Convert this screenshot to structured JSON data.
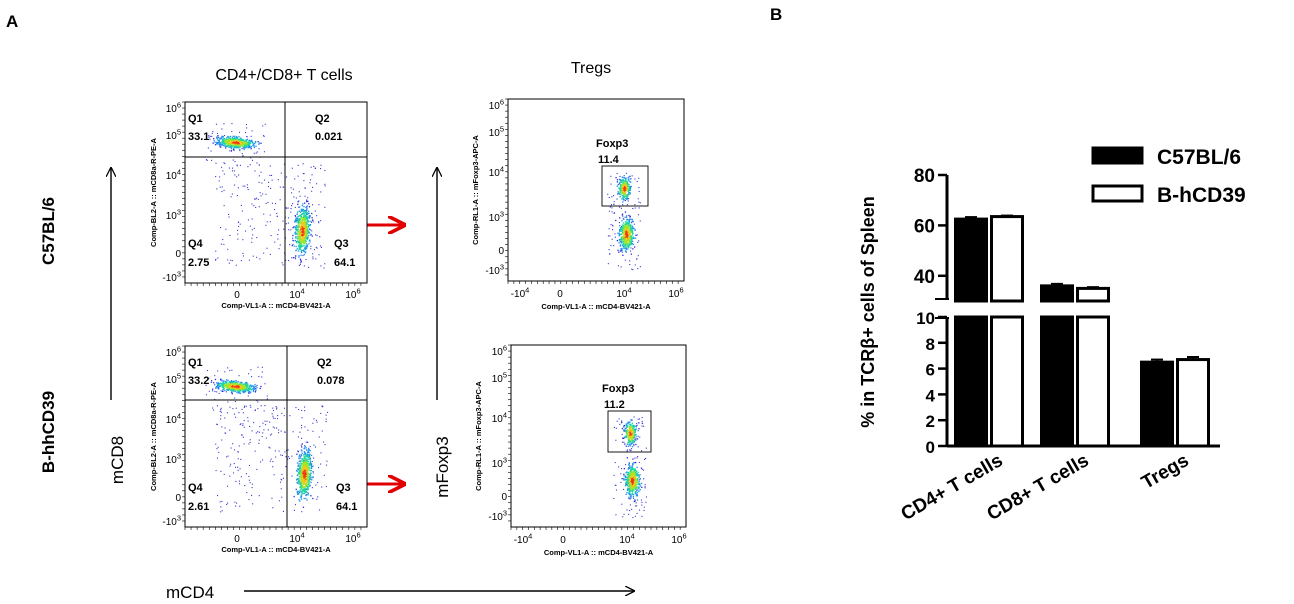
{
  "panel_a": {
    "label": "A",
    "title_left": "CD4+/CD8+ T cells",
    "title_right": "Tregs",
    "row_labels": [
      "C57BL/6",
      "B-hhCD39"
    ],
    "axis_big": {
      "y_left": "mCD8",
      "y_right": "mFoxp3",
      "x": "mCD4"
    },
    "scatter_axis": {
      "x_label": "Comp-VL1-A :: mCD4-BV421-A",
      "y_label_cd8": "Comp-BL2-A :: mCD8a-R-PE-A",
      "y_label_foxp3": "Comp-RL1-A :: mFoxp3-APC-A"
    },
    "gate_label": "Foxp3",
    "plots": [
      {
        "q1": "33.1",
        "q2": "0.021",
        "q3": "64.1",
        "q4": "2.75"
      },
      {
        "q1": "33.2",
        "q2": "0.078",
        "q3": "64.1",
        "q4": "2.61"
      }
    ],
    "treg": [
      "11.4",
      "11.2"
    ],
    "quadrant_names": [
      "Q1",
      "Q2",
      "Q3",
      "Q4"
    ],
    "ticks_cd8_y": [
      "10^6",
      "10^5",
      "10^4",
      "10^3",
      "0",
      "-10^3"
    ],
    "ticks_cd8_x": [
      "0",
      "10^4",
      "10^6"
    ],
    "ticks_foxp3_y": [
      "10^6",
      "10^5",
      "10^4",
      "10^3",
      "0",
      "-10^3"
    ],
    "ticks_foxp3_x": [
      "-10^4",
      "0",
      "10^4",
      "10^6"
    ]
  },
  "chart_data": {
    "type": "bar",
    "panel_label": "B",
    "ylabel": "% in TCRβ+ cells of Spleen",
    "categories": [
      "CD4+ T cells",
      "CD8+ T cells",
      "Tregs"
    ],
    "series": [
      {
        "name": "C57BL/6",
        "values": [
          62.5,
          36.0,
          6.5
        ],
        "errors": [
          0.8,
          0.8,
          0.2
        ],
        "fill": "#000000"
      },
      {
        "name": "B-hCD39",
        "values": [
          63.5,
          35.0,
          6.7
        ],
        "errors": [
          0.4,
          0.5,
          0.2
        ],
        "fill": "#ffffff"
      }
    ],
    "y_axis_broken": true,
    "y_segments": [
      {
        "range": [
          0,
          10
        ],
        "ticks": [
          0,
          2,
          4,
          6,
          8,
          10
        ]
      },
      {
        "range": [
          30,
          80
        ],
        "ticks": [
          40,
          60,
          80
        ]
      }
    ],
    "legend": "top-right"
  }
}
